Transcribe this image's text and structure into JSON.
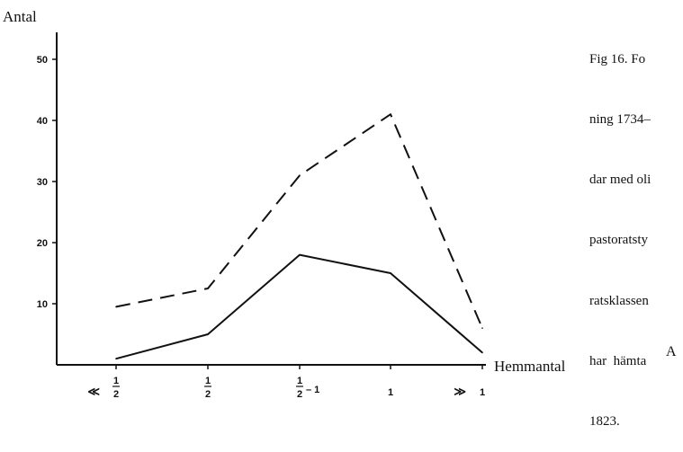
{
  "caption": {
    "lines": [
      "Fig 16. Fo",
      "ning 1734–",
      "dar med oli",
      "pastoratsty",
      "ratsklassen",
      "har  hämta",
      "1823."
    ]
  },
  "corner_letter": "A",
  "chart_data": {
    "type": "line",
    "ylabel": "Antal",
    "xlabel": "Hemmantal",
    "ylim": [
      0,
      53
    ],
    "yticks": [
      10,
      20,
      30,
      40,
      50
    ],
    "x": [
      "≪ 1/2",
      "1/2",
      "1/2 – 1",
      "1",
      "≫ 1"
    ],
    "x_tick_labels": [
      {
        "prefix": "≪",
        "num": "1",
        "den": "2",
        "suffix": ""
      },
      {
        "prefix": "",
        "num": "1",
        "den": "2",
        "suffix": ""
      },
      {
        "prefix": "",
        "num": "1",
        "den": "2",
        "suffix": "– 1"
      },
      {
        "prefix": "",
        "num": "1",
        "den": "",
        "suffix": ""
      },
      {
        "prefix": "≫",
        "num": "1",
        "den": "",
        "suffix": ""
      }
    ],
    "series": [
      {
        "style": "dashed",
        "values": [
          9.5,
          12.5,
          31,
          41,
          6
        ]
      },
      {
        "style": "solid",
        "values": [
          1,
          5,
          18,
          15,
          2
        ]
      }
    ],
    "grid": false,
    "legend": "none"
  }
}
